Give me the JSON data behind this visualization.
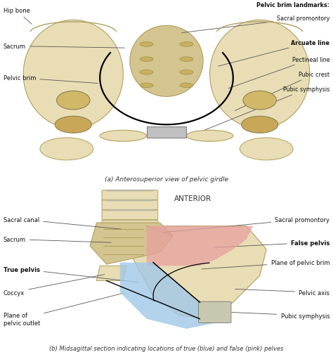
{
  "background_color": "#ffffff",
  "top_caption": "(a) Anterosuperior view of pelvic girdle",
  "bottom_caption": "(b) Midsagittal section indicating locations of true (blue) and false (pink) pelves",
  "anterior_label": "ANTERIOR",
  "bone_color": "#e8ddb5",
  "mid_bone": "#d4c490",
  "pink_color": "#e8a0a0",
  "blue_color": "#a0c8e8",
  "line_color": "#333333",
  "caption_color": "#333333"
}
